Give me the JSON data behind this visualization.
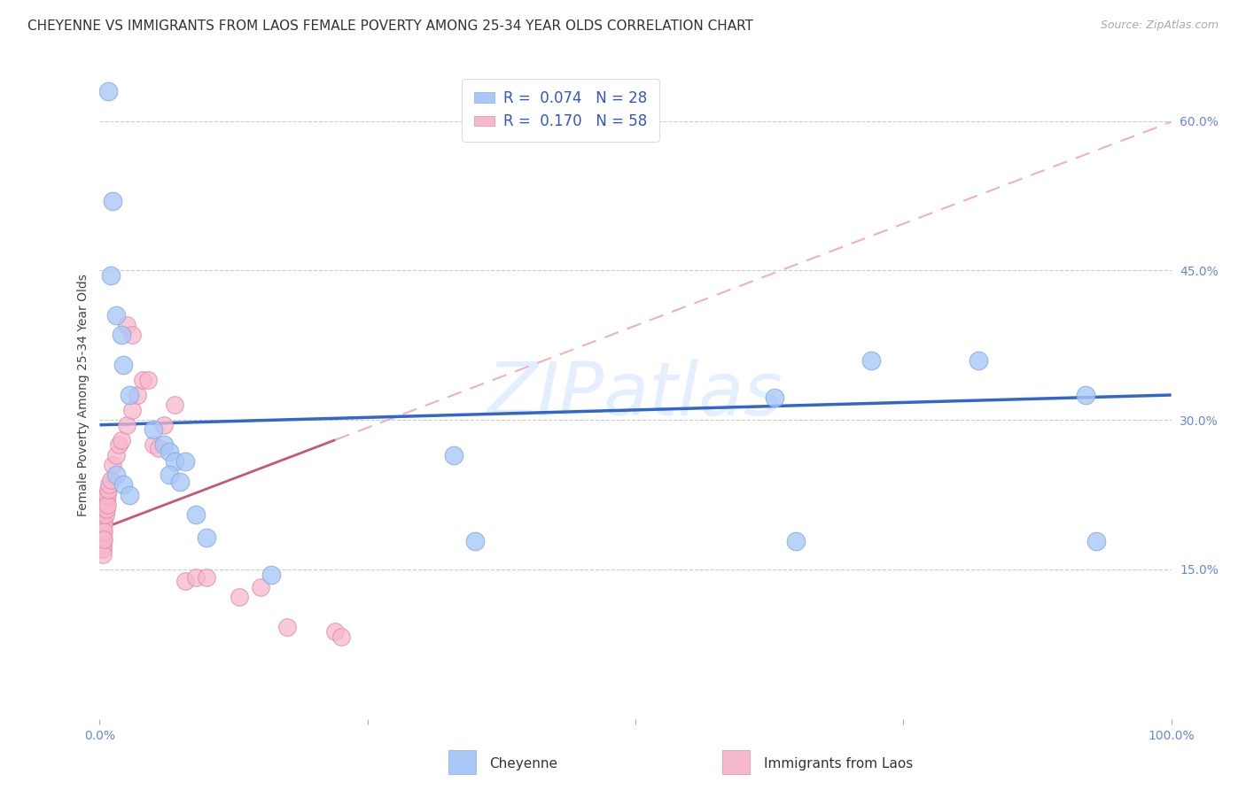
{
  "title": "CHEYENNE VS IMMIGRANTS FROM LAOS FEMALE POVERTY AMONG 25-34 YEAR OLDS CORRELATION CHART",
  "source": "Source: ZipAtlas.com",
  "ylabel": "Female Poverty Among 25-34 Year Olds",
  "watermark": "ZIPatlas",
  "cheyenne_color": "#a8c8f8",
  "cheyenne_edge_color": "#88aadd",
  "laos_color": "#f8b8cc",
  "laos_edge_color": "#dd88aa",
  "cheyenne_line_color": "#3366cc",
  "laos_solid_color": "#cc5577",
  "laos_dash_color": "#f0b0c0",
  "R_cheyenne": 0.074,
  "N_cheyenne": 28,
  "R_laos": 0.17,
  "N_laos": 58,
  "xlim": [
    0,
    1.0
  ],
  "ylim": [
    0,
    0.65
  ],
  "legend_R_color": "#3355cc",
  "legend_N_color": "#3355cc",
  "tick_color": "#6688dd",
  "title_fontsize": 11,
  "label_fontsize": 10,
  "tick_fontsize": 10,
  "legend_fontsize": 12,
  "cheyenne_x": [
    0.008,
    0.012,
    0.01,
    0.015,
    0.02,
    0.022,
    0.028,
    0.05,
    0.06,
    0.065,
    0.07,
    0.08,
    0.33,
    0.35,
    0.63,
    0.65,
    0.72,
    0.82,
    0.92,
    0.93,
    0.015,
    0.022,
    0.028,
    0.065,
    0.075,
    0.09,
    0.1,
    0.16
  ],
  "cheyenne_y": [
    0.63,
    0.52,
    0.445,
    0.405,
    0.385,
    0.355,
    0.325,
    0.29,
    0.275,
    0.268,
    0.258,
    0.258,
    0.265,
    0.178,
    0.322,
    0.178,
    0.36,
    0.36,
    0.325,
    0.178,
    0.245,
    0.235,
    0.225,
    0.245,
    0.238,
    0.205,
    0.182,
    0.145
  ],
  "laos_x": [
    0.002,
    0.002,
    0.002,
    0.002,
    0.002,
    0.002,
    0.002,
    0.002,
    0.002,
    0.002,
    0.003,
    0.003,
    0.003,
    0.003,
    0.003,
    0.003,
    0.003,
    0.003,
    0.003,
    0.003,
    0.004,
    0.004,
    0.004,
    0.004,
    0.004,
    0.004,
    0.005,
    0.005,
    0.006,
    0.006,
    0.007,
    0.007,
    0.008,
    0.009,
    0.01,
    0.012,
    0.015,
    0.018,
    0.02,
    0.025,
    0.03,
    0.035,
    0.04,
    0.045,
    0.05,
    0.055,
    0.06,
    0.07,
    0.08,
    0.09,
    0.1,
    0.13,
    0.15,
    0.175,
    0.22,
    0.225,
    0.025,
    0.03
  ],
  "laos_y": [
    0.205,
    0.2,
    0.198,
    0.195,
    0.192,
    0.188,
    0.185,
    0.18,
    0.175,
    0.17,
    0.21,
    0.205,
    0.2,
    0.195,
    0.19,
    0.185,
    0.18,
    0.175,
    0.17,
    0.165,
    0.215,
    0.208,
    0.2,
    0.195,
    0.188,
    0.18,
    0.215,
    0.205,
    0.22,
    0.21,
    0.225,
    0.215,
    0.23,
    0.235,
    0.24,
    0.255,
    0.265,
    0.275,
    0.28,
    0.295,
    0.31,
    0.325,
    0.34,
    0.34,
    0.275,
    0.272,
    0.295,
    0.315,
    0.138,
    0.142,
    0.142,
    0.122,
    0.132,
    0.092,
    0.088,
    0.082,
    0.395,
    0.385
  ]
}
